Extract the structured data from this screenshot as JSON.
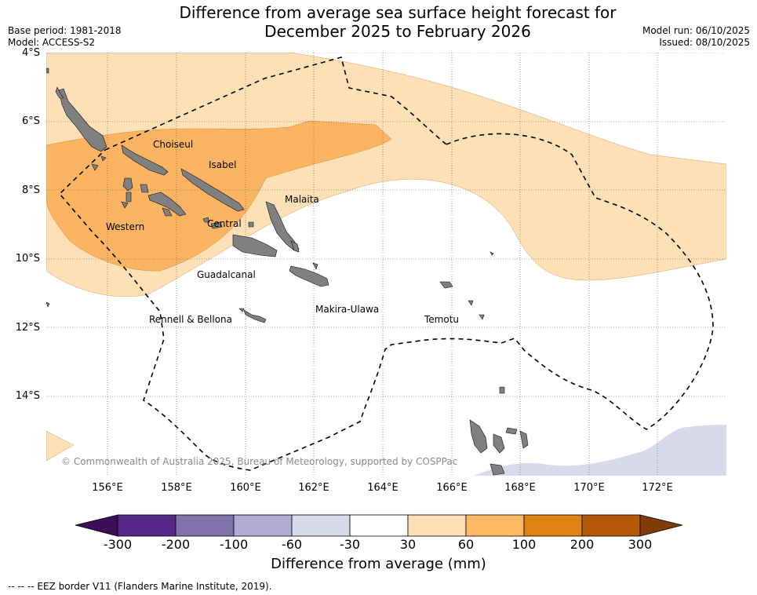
{
  "title_line1": "Difference from average sea surface height forecast for",
  "title_line2": "December 2025 to February 2026",
  "base_period": "Base period: 1981-2018",
  "model": "Model: ACCESS-S2",
  "model_run": "Model run: 06/10/2025",
  "issued": "Issued: 08/10/2025",
  "latitudes": [
    "4°S",
    "6°S",
    "8°S",
    "10°S",
    "12°S",
    "14°S"
  ],
  "longitudes": [
    "156°E",
    "158°E",
    "160°E",
    "162°E",
    "164°E",
    "166°E",
    "168°E",
    "170°E",
    "172°E"
  ],
  "places": {
    "choiseul": "Choiseul",
    "isabel": "Isabel",
    "malaita": "Malaita",
    "western": "Western",
    "central": "Central",
    "guadalcanal": "Guadalcanal",
    "makira_ulawa": "Makira-Ulawa",
    "temotu": "Temotu",
    "rennell_bellona": "Rennell & Bellona"
  },
  "copyright": "© Commonwealth of Australia 2025, Bureau of Meteorology, supported by COSPPac",
  "colorbar": {
    "ticks": [
      "-300",
      "-200",
      "-100",
      "-60",
      "-30",
      "30",
      "60",
      "100",
      "200",
      "300"
    ],
    "colors": [
      "#3b0f58",
      "#542788",
      "#8073ac",
      "#b2abd2",
      "#d8daeb",
      "#ffffff",
      "#fee0b6",
      "#fdb863",
      "#e08214",
      "#b35806",
      "#7f3b08"
    ],
    "label": "Difference from average (mm)"
  },
  "legend_eez": "--  --  -- EEZ border V11 (Flanders Marine Institute, 2019)."
}
